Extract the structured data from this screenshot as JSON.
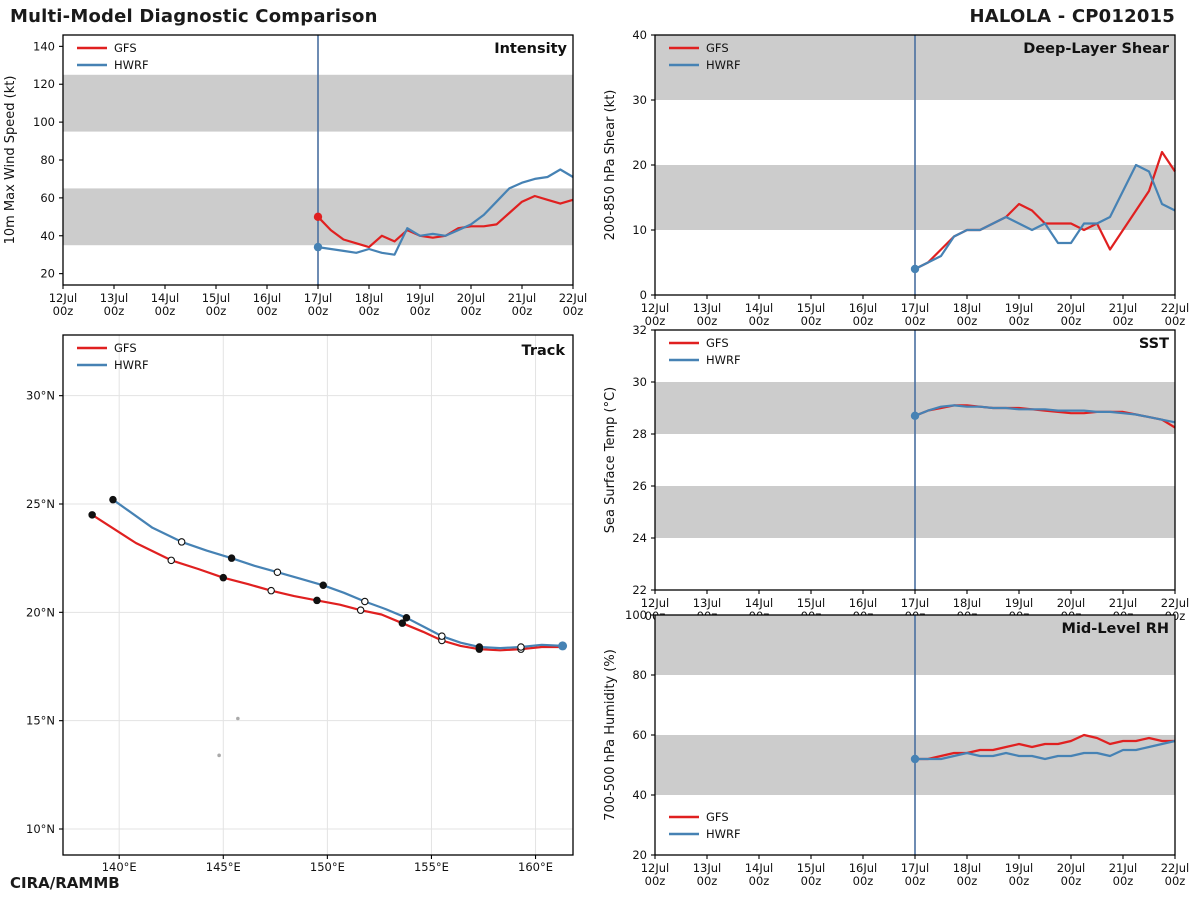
{
  "header": {
    "left_title": "Multi-Model Diagnostic Comparison",
    "right_title": "HALOLA - CP012015"
  },
  "footer": {
    "credit": "CIRA/RAMMB"
  },
  "legend": {
    "gfs": "GFS",
    "hwrf": "HWRF"
  },
  "colors": {
    "gfs": "#e02020",
    "hwrf": "#4682b4",
    "band": "#cccccc",
    "vline": "#4a6fa0",
    "grid": "#e3e3e3",
    "island": "#aaaaaa",
    "axis": "#000000",
    "text": "#111111"
  },
  "time_axis": {
    "start_day": 0,
    "end_day": 10,
    "vline_day": 5,
    "day_labels": [
      "12Jul",
      "13Jul",
      "14Jul",
      "15Jul",
      "16Jul",
      "17Jul",
      "18Jul",
      "19Jul",
      "20Jul",
      "21Jul",
      "22Jul"
    ],
    "hour_label": "00z"
  },
  "chart_data": [
    {
      "id": "intensity",
      "type": "line",
      "title": "Intensity",
      "ylabel": "10m Max Wind Speed (kt)",
      "ylim": [
        14,
        146
      ],
      "yticks": [
        20,
        40,
        60,
        80,
        100,
        120,
        140
      ],
      "bands": [
        [
          35,
          65
        ],
        [
          95,
          125
        ]
      ],
      "x_start_day": 5,
      "x_step_days": 0.25,
      "legend_pos": "top-left",
      "series": [
        {
          "name": "GFS",
          "color": "gfs",
          "start_dot": true,
          "values": [
            50,
            43,
            38,
            36,
            34,
            40,
            37,
            43,
            40,
            39,
            40,
            44,
            45,
            45,
            46,
            52,
            58,
            61,
            59,
            57,
            59
          ]
        },
        {
          "name": "HWRF",
          "color": "hwrf",
          "start_dot": true,
          "values": [
            34,
            33,
            32,
            31,
            33,
            31,
            30,
            44,
            40,
            41,
            40,
            43,
            46,
            51,
            58,
            65,
            68,
            70,
            71,
            75,
            71
          ]
        }
      ]
    },
    {
      "id": "shear",
      "type": "line",
      "title": "Deep-Layer Shear",
      "ylabel": "200-850 hPa Shear (kt)",
      "ylim": [
        0,
        40
      ],
      "yticks": [
        0,
        10,
        20,
        30,
        40
      ],
      "bands": [
        [
          10,
          20
        ],
        [
          30,
          40
        ]
      ],
      "x_start_day": 5,
      "x_step_days": 0.25,
      "legend_pos": "top-left",
      "series": [
        {
          "name": "GFS",
          "color": "gfs",
          "start_dot": false,
          "values": [
            4,
            5,
            7,
            9,
            10,
            10,
            11,
            12,
            14,
            13,
            11,
            11,
            11,
            10,
            11,
            7,
            10,
            13,
            16,
            22,
            19
          ]
        },
        {
          "name": "HWRF",
          "color": "hwrf",
          "start_dot": true,
          "values": [
            4,
            5,
            6,
            9,
            10,
            10,
            11,
            12,
            11,
            10,
            11,
            8,
            8,
            11,
            11,
            12,
            16,
            20,
            19,
            14,
            13
          ]
        }
      ]
    },
    {
      "id": "sst",
      "type": "line",
      "title": "SST",
      "ylabel": "Sea Surface Temp (°C)",
      "ylim": [
        22,
        32
      ],
      "yticks": [
        22,
        24,
        26,
        28,
        30,
        32
      ],
      "bands": [
        [
          24,
          26
        ],
        [
          28,
          30
        ]
      ],
      "x_start_day": 5,
      "x_step_days": 0.25,
      "legend_pos": "top-left",
      "series": [
        {
          "name": "GFS",
          "color": "gfs",
          "start_dot": false,
          "values": [
            28.7,
            28.9,
            29.0,
            29.1,
            29.1,
            29.05,
            29.0,
            29.0,
            29.0,
            28.95,
            28.9,
            28.85,
            28.8,
            28.8,
            28.85,
            28.85,
            28.85,
            28.75,
            28.65,
            28.55,
            28.25
          ]
        },
        {
          "name": "HWRF",
          "color": "hwrf",
          "start_dot": true,
          "values": [
            28.7,
            28.9,
            29.05,
            29.1,
            29.05,
            29.05,
            29.0,
            29.0,
            28.95,
            28.95,
            28.95,
            28.9,
            28.9,
            28.9,
            28.85,
            28.85,
            28.8,
            28.75,
            28.65,
            28.55,
            28.45
          ]
        }
      ]
    },
    {
      "id": "rh",
      "type": "line",
      "title": "Mid-Level RH",
      "ylabel": "700-500 hPa Humidity (%)",
      "ylim": [
        20,
        100
      ],
      "yticks": [
        20,
        40,
        60,
        80,
        100
      ],
      "bands": [
        [
          40,
          60
        ],
        [
          80,
          100
        ]
      ],
      "x_start_day": 5,
      "x_step_days": 0.25,
      "legend_pos": "bottom-left",
      "series": [
        {
          "name": "GFS",
          "color": "gfs",
          "start_dot": false,
          "values": [
            52,
            52,
            53,
            54,
            54,
            55,
            55,
            56,
            57,
            56,
            57,
            57,
            58,
            60,
            59,
            57,
            58,
            58,
            59,
            58,
            58
          ]
        },
        {
          "name": "HWRF",
          "color": "hwrf",
          "start_dot": true,
          "values": [
            52,
            52,
            52,
            53,
            54,
            53,
            53,
            54,
            53,
            53,
            52,
            53,
            53,
            54,
            54,
            53,
            55,
            55,
            56,
            57,
            58
          ]
        }
      ]
    },
    {
      "id": "track",
      "type": "track",
      "title": "Track",
      "xlim": [
        137.3,
        161.8
      ],
      "ylim": [
        8.8,
        32.8
      ],
      "xticks": [
        140,
        145,
        150,
        155,
        160
      ],
      "xtick_labels": [
        "140°E",
        "145°E",
        "150°E",
        "155°E",
        "160°E"
      ],
      "yticks": [
        10,
        15,
        20,
        25,
        30
      ],
      "ytick_labels": [
        "10°N",
        "15°N",
        "20°N",
        "25°N",
        "30°N"
      ],
      "legend_pos": "top-left",
      "islands": [
        {
          "lon": 144.8,
          "lat": 13.4
        },
        {
          "lon": 145.7,
          "lat": 15.1
        }
      ],
      "series": [
        {
          "name": "GFS",
          "color": "gfs",
          "start_dot": false,
          "lon": [
            161.3,
            160.3,
            159.3,
            158.3,
            157.3,
            156.4,
            155.5,
            154.6,
            153.6,
            152.6,
            151.6,
            150.6,
            149.5,
            148.4,
            147.3,
            146.2,
            145.0,
            143.8,
            142.5,
            140.8,
            138.7
          ],
          "lat": [
            18.4,
            18.4,
            18.3,
            18.25,
            18.3,
            18.45,
            18.7,
            19.1,
            19.5,
            19.9,
            20.1,
            20.35,
            20.55,
            20.75,
            21.0,
            21.3,
            21.6,
            22.0,
            22.4,
            23.2,
            24.5
          ]
        },
        {
          "name": "HWRF",
          "color": "hwrf",
          "start_dot": true,
          "lon": [
            161.3,
            160.3,
            159.3,
            158.3,
            157.3,
            156.4,
            155.5,
            154.7,
            153.8,
            152.8,
            151.8,
            150.8,
            149.8,
            148.7,
            147.6,
            146.5,
            145.4,
            144.2,
            143.0,
            141.6,
            139.7
          ],
          "lat": [
            18.45,
            18.5,
            18.4,
            18.35,
            18.4,
            18.6,
            18.9,
            19.3,
            19.75,
            20.15,
            20.5,
            20.9,
            21.25,
            21.55,
            21.85,
            22.15,
            22.5,
            22.85,
            23.25,
            23.9,
            25.2
          ]
        }
      ]
    }
  ]
}
